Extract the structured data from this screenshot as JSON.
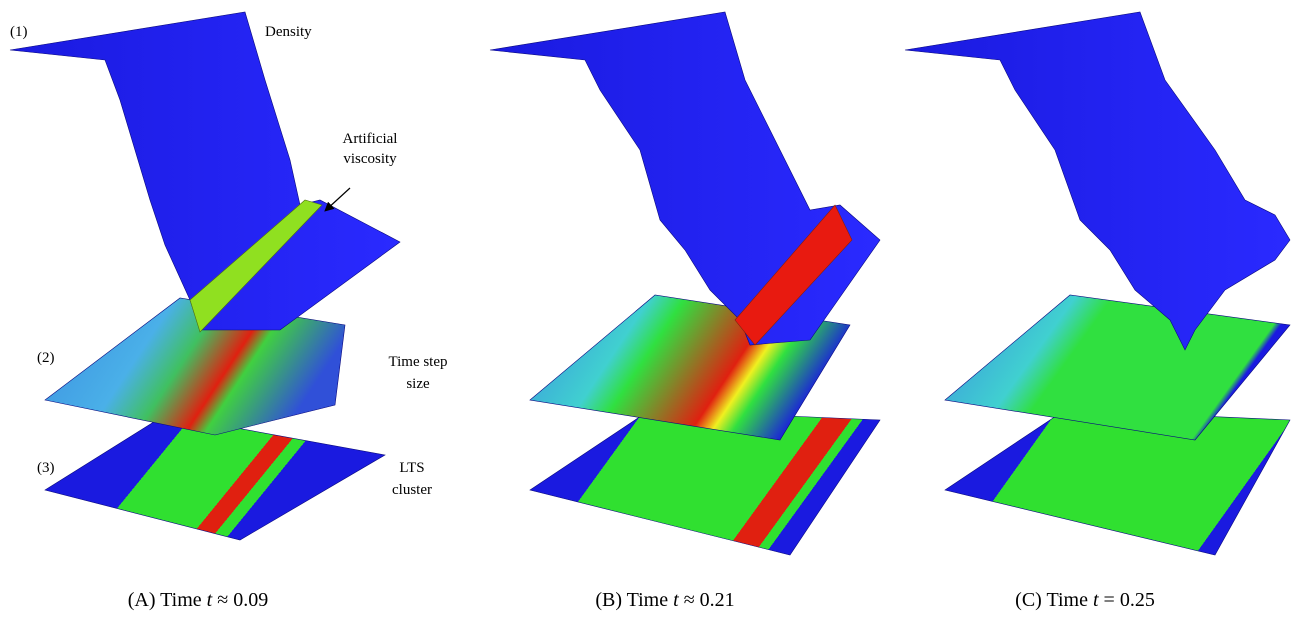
{
  "annotations": {
    "layer_1": "(1)",
    "density": "Density",
    "viscosity_line1": "Artificial",
    "viscosity_line2": "viscosity",
    "layer_2": "(2)",
    "time_step_line1": "Time step",
    "time_step_line2": "size",
    "layer_3": "(3)",
    "lts_line1": "LTS",
    "lts_line2": "cluster"
  },
  "panels": [
    {
      "caption": {
        "label": "(A) Time",
        "variable": "t",
        "relation": "≈ 0.09"
      }
    },
    {
      "caption": {
        "label": "(B) Time",
        "variable": "t",
        "relation": "≈ 0.21"
      }
    },
    {
      "caption": {
        "label": "(C) Time",
        "variable": "t",
        "relation": "= 0.25"
      }
    }
  ]
}
